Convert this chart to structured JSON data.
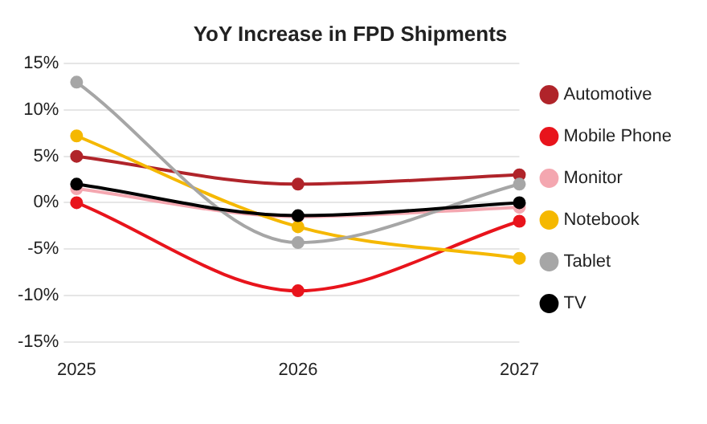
{
  "chart_data": {
    "type": "line",
    "title": "YoY Increase in FPD Shipments",
    "categories": [
      "2025",
      "2026",
      "2027"
    ],
    "series": [
      {
        "name": "Automotive",
        "color": "#b0242a",
        "values": [
          5,
          2,
          3
        ]
      },
      {
        "name": "Mobile Phone",
        "color": "#e8141c",
        "values": [
          0,
          -9.5,
          -2
        ]
      },
      {
        "name": "Monitor",
        "color": "#f4a7b0",
        "values": [
          1.5,
          -1.5,
          -0.5
        ]
      },
      {
        "name": "Notebook",
        "color": "#f5b800",
        "values": [
          7.2,
          -2.6,
          -6
        ]
      },
      {
        "name": "Tablet",
        "color": "#a6a6a6",
        "values": [
          13,
          -4.3,
          2
        ]
      },
      {
        "name": "TV",
        "color": "#000000",
        "values": [
          2,
          -1.4,
          0
        ]
      }
    ],
    "ylim": [
      -15,
      15
    ],
    "yticks": [
      {
        "value": -15,
        "label": "-15%"
      },
      {
        "value": -10,
        "label": "-10%"
      },
      {
        "value": -5,
        "label": "-5%"
      },
      {
        "value": 0,
        "label": "0%"
      },
      {
        "value": 5,
        "label": "5%"
      },
      {
        "value": 10,
        "label": "10%"
      },
      {
        "value": 15,
        "label": "15%"
      }
    ],
    "grid": "y",
    "legend": "right",
    "marker": "circle",
    "line_style": "solid"
  }
}
